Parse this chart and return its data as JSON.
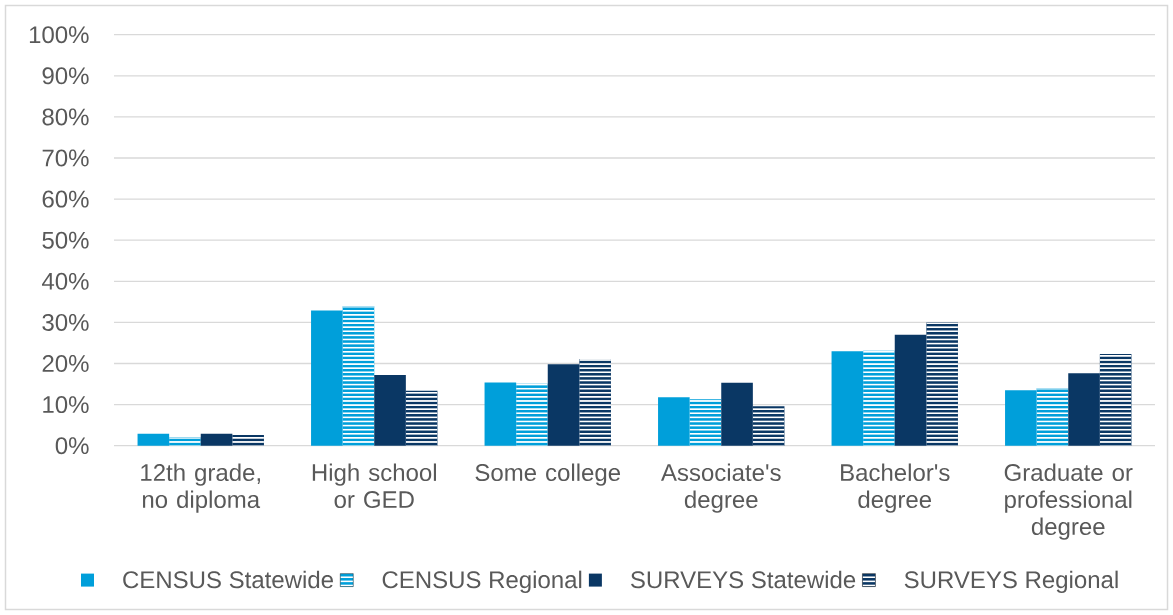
{
  "chart_data": {
    "type": "bar",
    "categories": [
      "12th grade, no diploma",
      "High school or GED",
      "Some college",
      "Associate's degree",
      "Bachelor's degree",
      "Graduate or professional degree"
    ],
    "series": [
      {
        "name": "CENSUS Statewide",
        "color": "#009fda",
        "values": [
          2.9,
          32.9,
          15.4,
          11.8,
          23.0,
          13.5
        ]
      },
      {
        "name": "CENSUS Regional",
        "color": "#009fda",
        "values": [
          2.0,
          33.9,
          15.1,
          11.3,
          23.1,
          14.0
        ]
      },
      {
        "name": "SURVEYS Statewide",
        "color": "#0a3764",
        "values": [
          2.9,
          17.2,
          19.8,
          15.3,
          27.0,
          17.6
        ]
      },
      {
        "name": "SURVEYS Regional",
        "color": "#0a3764",
        "values": [
          2.6,
          13.4,
          21.1,
          9.6,
          30.0,
          22.3
        ]
      }
    ],
    "ylim": [
      0,
      100
    ],
    "yticks": [
      {
        "value": 0,
        "label": "0%"
      },
      {
        "value": 10,
        "label": "10%"
      },
      {
        "value": 20,
        "label": "20%"
      },
      {
        "value": 30,
        "label": "30%"
      },
      {
        "value": 40,
        "label": "40%"
      },
      {
        "value": 50,
        "label": "50%"
      },
      {
        "value": 60,
        "label": "60%"
      },
      {
        "value": 70,
        "label": "70%"
      },
      {
        "value": 80,
        "label": "80%"
      },
      {
        "value": 90,
        "label": "90%"
      },
      {
        "value": 100,
        "label": "100%"
      }
    ],
    "grid": "y",
    "legend": "bottom"
  }
}
